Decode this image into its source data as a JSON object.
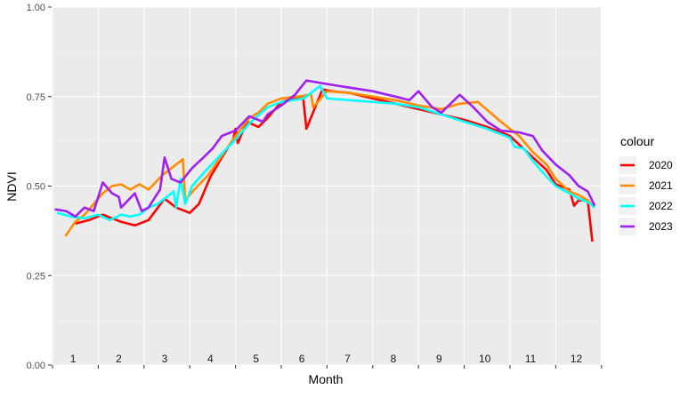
{
  "chart_data": {
    "type": "line",
    "xlabel": "Month",
    "ylabel": "NDVI",
    "ylim": [
      0,
      1
    ],
    "y_ticks": [
      "0.00",
      "0.25",
      "0.50",
      "0.75",
      "1.00"
    ],
    "month_labels": [
      "1",
      "2",
      "3",
      "4",
      "5",
      "6",
      "7",
      "8",
      "9",
      "10",
      "11",
      "12"
    ],
    "legend_title": "colour",
    "legend_position": "right",
    "grid": true,
    "series": [
      {
        "name": "2020",
        "color": "#ff0000",
        "points": [
          [
            1.0,
            0.395
          ],
          [
            1.3,
            0.405
          ],
          [
            1.6,
            0.42
          ],
          [
            2.0,
            0.4
          ],
          [
            2.3,
            0.39
          ],
          [
            2.6,
            0.405
          ],
          [
            2.95,
            0.465
          ],
          [
            3.2,
            0.44
          ],
          [
            3.5,
            0.425
          ],
          [
            3.7,
            0.45
          ],
          [
            3.95,
            0.525
          ],
          [
            4.2,
            0.58
          ],
          [
            4.45,
            0.63
          ],
          [
            4.5,
            0.66
          ],
          [
            4.55,
            0.62
          ],
          [
            4.75,
            0.68
          ],
          [
            5.0,
            0.665
          ],
          [
            5.2,
            0.69
          ],
          [
            5.5,
            0.735
          ],
          [
            5.8,
            0.745
          ],
          [
            5.98,
            0.745
          ],
          [
            6.05,
            0.66
          ],
          [
            6.4,
            0.77
          ],
          [
            6.6,
            0.765
          ],
          [
            7.0,
            0.76
          ],
          [
            7.5,
            0.745
          ],
          [
            8.0,
            0.73
          ],
          [
            8.5,
            0.715
          ],
          [
            9.0,
            0.7
          ],
          [
            9.5,
            0.685
          ],
          [
            10.0,
            0.665
          ],
          [
            10.5,
            0.64
          ],
          [
            11.0,
            0.58
          ],
          [
            11.3,
            0.545
          ],
          [
            11.5,
            0.505
          ],
          [
            11.8,
            0.49
          ],
          [
            11.9,
            0.445
          ],
          [
            12.0,
            0.46
          ],
          [
            12.2,
            0.46
          ],
          [
            12.3,
            0.345
          ]
        ]
      },
      {
        "name": "2021",
        "color": "#ff8c00",
        "points": [
          [
            0.78,
            0.36
          ],
          [
            1.0,
            0.4
          ],
          [
            1.2,
            0.42
          ],
          [
            1.4,
            0.45
          ],
          [
            1.6,
            0.48
          ],
          [
            1.8,
            0.5
          ],
          [
            2.0,
            0.505
          ],
          [
            2.2,
            0.49
          ],
          [
            2.4,
            0.505
          ],
          [
            2.6,
            0.49
          ],
          [
            2.9,
            0.53
          ],
          [
            3.1,
            0.55
          ],
          [
            3.35,
            0.575
          ],
          [
            3.4,
            0.46
          ],
          [
            3.6,
            0.49
          ],
          [
            3.9,
            0.53
          ],
          [
            4.2,
            0.585
          ],
          [
            4.5,
            0.64
          ],
          [
            4.8,
            0.69
          ],
          [
            5.0,
            0.705
          ],
          [
            5.2,
            0.73
          ],
          [
            5.5,
            0.745
          ],
          [
            6.0,
            0.752
          ],
          [
            6.15,
            0.757
          ],
          [
            6.2,
            0.72
          ],
          [
            6.5,
            0.765
          ],
          [
            7.0,
            0.76
          ],
          [
            7.5,
            0.75
          ],
          [
            8.0,
            0.74
          ],
          [
            8.5,
            0.725
          ],
          [
            9.0,
            0.715
          ],
          [
            9.4,
            0.73
          ],
          [
            9.8,
            0.735
          ],
          [
            10.3,
            0.68
          ],
          [
            10.7,
            0.64
          ],
          [
            11.0,
            0.595
          ],
          [
            11.3,
            0.56
          ],
          [
            11.5,
            0.52
          ],
          [
            11.8,
            0.485
          ],
          [
            12.0,
            0.475
          ],
          [
            12.2,
            0.46
          ],
          [
            12.35,
            0.44
          ]
        ]
      },
      {
        "name": "2022",
        "color": "#00ffff",
        "points": [
          [
            0.6,
            0.425
          ],
          [
            0.9,
            0.415
          ],
          [
            1.2,
            0.41
          ],
          [
            1.5,
            0.42
          ],
          [
            1.75,
            0.405
          ],
          [
            2.0,
            0.42
          ],
          [
            2.2,
            0.415
          ],
          [
            2.4,
            0.42
          ],
          [
            2.6,
            0.44
          ],
          [
            2.8,
            0.45
          ],
          [
            3.0,
            0.47
          ],
          [
            3.15,
            0.485
          ],
          [
            3.2,
            0.44
          ],
          [
            3.3,
            0.52
          ],
          [
            3.4,
            0.45
          ],
          [
            3.55,
            0.5
          ],
          [
            3.9,
            0.55
          ],
          [
            4.2,
            0.59
          ],
          [
            4.5,
            0.63
          ],
          [
            4.8,
            0.675
          ],
          [
            5.2,
            0.72
          ],
          [
            5.5,
            0.735
          ],
          [
            6.0,
            0.745
          ],
          [
            6.35,
            0.78
          ],
          [
            6.5,
            0.745
          ],
          [
            7.0,
            0.74
          ],
          [
            7.5,
            0.735
          ],
          [
            8.0,
            0.73
          ],
          [
            8.5,
            0.72
          ],
          [
            9.0,
            0.7
          ],
          [
            9.5,
            0.68
          ],
          [
            10.0,
            0.66
          ],
          [
            10.5,
            0.635
          ],
          [
            10.6,
            0.61
          ],
          [
            10.8,
            0.605
          ],
          [
            11.0,
            0.57
          ],
          [
            11.2,
            0.54
          ],
          [
            11.5,
            0.5
          ],
          [
            11.8,
            0.48
          ],
          [
            12.0,
            0.465
          ],
          [
            12.2,
            0.455
          ],
          [
            12.35,
            0.44
          ]
        ]
      },
      {
        "name": "2023",
        "color": "#a020f0",
        "points": [
          [
            0.55,
            0.435
          ],
          [
            0.8,
            0.43
          ],
          [
            1.0,
            0.415
          ],
          [
            1.2,
            0.44
          ],
          [
            1.4,
            0.43
          ],
          [
            1.6,
            0.51
          ],
          [
            1.8,
            0.48
          ],
          [
            1.95,
            0.47
          ],
          [
            2.0,
            0.44
          ],
          [
            2.3,
            0.48
          ],
          [
            2.45,
            0.43
          ],
          [
            2.6,
            0.44
          ],
          [
            2.75,
            0.47
          ],
          [
            2.85,
            0.49
          ],
          [
            2.95,
            0.58
          ],
          [
            3.1,
            0.52
          ],
          [
            3.3,
            0.51
          ],
          [
            3.55,
            0.55
          ],
          [
            3.8,
            0.58
          ],
          [
            4.0,
            0.605
          ],
          [
            4.2,
            0.64
          ],
          [
            4.5,
            0.655
          ],
          [
            4.8,
            0.695
          ],
          [
            5.1,
            0.68
          ],
          [
            5.2,
            0.7
          ],
          [
            5.5,
            0.725
          ],
          [
            5.8,
            0.755
          ],
          [
            6.05,
            0.795
          ],
          [
            6.5,
            0.785
          ],
          [
            7.0,
            0.775
          ],
          [
            7.5,
            0.765
          ],
          [
            8.0,
            0.75
          ],
          [
            8.3,
            0.74
          ],
          [
            8.5,
            0.765
          ],
          [
            8.8,
            0.72
          ],
          [
            9.0,
            0.705
          ],
          [
            9.4,
            0.755
          ],
          [
            9.7,
            0.72
          ],
          [
            10.0,
            0.68
          ],
          [
            10.3,
            0.655
          ],
          [
            10.7,
            0.65
          ],
          [
            11.0,
            0.64
          ],
          [
            11.2,
            0.6
          ],
          [
            11.5,
            0.56
          ],
          [
            11.8,
            0.53
          ],
          [
            12.0,
            0.5
          ],
          [
            12.2,
            0.485
          ],
          [
            12.35,
            0.445
          ]
        ]
      }
    ]
  }
}
